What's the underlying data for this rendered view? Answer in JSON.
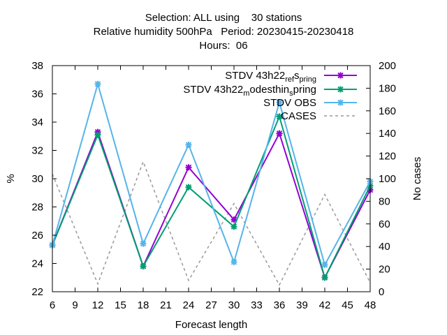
{
  "chart_data": {
    "type": "line",
    "title_lines": [
      "Selection: ALL using    30 stations",
      "Relative humidity 500hPa   Period: 20230415-20230418",
      "Hours:  06"
    ],
    "xlabel": "Forecast length",
    "ylabel": "%",
    "y2label": "No cases",
    "x": [
      6,
      12,
      18,
      24,
      30,
      36,
      42,
      48
    ],
    "xticks": [
      6,
      9,
      12,
      15,
      18,
      21,
      24,
      27,
      30,
      33,
      36,
      39,
      42,
      45,
      48
    ],
    "xlim": [
      6,
      48
    ],
    "ylim": [
      22,
      38
    ],
    "yticks": [
      22,
      24,
      26,
      28,
      30,
      32,
      34,
      36,
      38
    ],
    "y2lim": [
      0,
      200
    ],
    "y2ticks": [
      0,
      20,
      40,
      60,
      80,
      100,
      120,
      140,
      160,
      180,
      200
    ],
    "legend_position": "top-right",
    "series": [
      {
        "name": "STDV 43h22_ref_spring",
        "name_parts": [
          "STDV 43h22",
          "ref",
          "s",
          "pring"
        ],
        "axis": "y",
        "color": "#9400d3",
        "values": [
          25.3,
          33.3,
          23.8,
          30.8,
          27.1,
          33.2,
          23.0,
          29.2
        ]
      },
      {
        "name": "STDV 43h22_modesthin_spring",
        "name_parts": [
          "STDV 43h22",
          "m",
          "odesthin",
          "s",
          "pring"
        ],
        "axis": "y",
        "color": "#009e73",
        "values": [
          25.3,
          33.1,
          23.8,
          29.4,
          26.6,
          34.4,
          23.0,
          29.5
        ]
      },
      {
        "name": "STDV OBS",
        "axis": "y",
        "color": "#56b4e9",
        "values": [
          25.3,
          36.7,
          25.4,
          32.4,
          24.1,
          35.4,
          23.9,
          29.8
        ]
      },
      {
        "name": "CASES",
        "axis": "y2",
        "color": "#999999",
        "dashed": true,
        "values": [
          104,
          7,
          115,
          10,
          78,
          6,
          86,
          8
        ]
      }
    ]
  }
}
